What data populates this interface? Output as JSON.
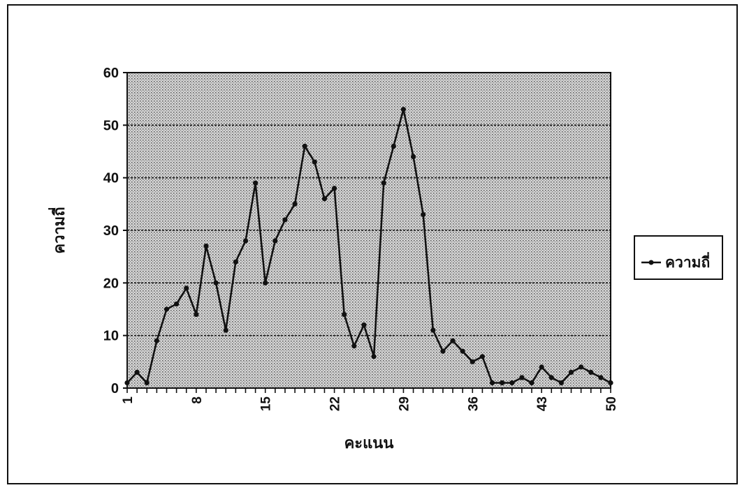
{
  "chart_data": {
    "type": "line",
    "xlabel": "คะแนน",
    "ylabel": "ความถี่",
    "xlim": [
      1,
      50
    ],
    "ylim": [
      0,
      60
    ],
    "x_ticks": [
      1,
      8,
      15,
      22,
      29,
      36,
      43,
      50
    ],
    "y_ticks": [
      0,
      10,
      20,
      30,
      40,
      50,
      60
    ],
    "grid": true,
    "legend_position": "right",
    "colors": {
      "line": "#111111",
      "plot_background": "#c9c9c9"
    },
    "x": [
      1,
      2,
      3,
      4,
      5,
      6,
      7,
      8,
      9,
      10,
      11,
      12,
      13,
      14,
      15,
      16,
      17,
      18,
      19,
      20,
      21,
      22,
      23,
      24,
      25,
      26,
      27,
      28,
      29,
      30,
      31,
      32,
      33,
      34,
      35,
      36,
      37,
      38,
      39,
      40,
      41,
      42,
      43,
      44,
      45,
      46,
      47,
      48,
      49,
      50
    ],
    "series": [
      {
        "name": "ความถี่",
        "values": [
          1,
          3,
          1,
          9,
          15,
          16,
          19,
          14,
          27,
          20,
          11,
          24,
          28,
          39,
          20,
          28,
          32,
          35,
          46,
          43,
          36,
          38,
          14,
          8,
          12,
          6,
          39,
          46,
          53,
          44,
          33,
          11,
          7,
          9,
          7,
          5,
          6,
          1,
          1,
          1,
          2,
          1,
          4,
          2,
          1,
          3,
          4,
          3,
          2,
          1
        ]
      }
    ]
  }
}
